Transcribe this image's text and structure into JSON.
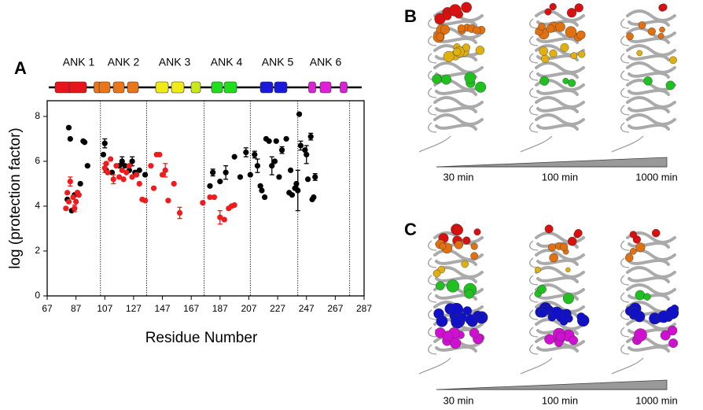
{
  "chart_data": {
    "type": "scatter",
    "panel_label": "A",
    "xlabel": "Residue Number",
    "ylabel": "log (protection factor)",
    "xlim": [
      67,
      287
    ],
    "ylim": [
      0,
      8.7
    ],
    "xticks": [
      67,
      87,
      107,
      127,
      147,
      167,
      187,
      207,
      227,
      247,
      267,
      287
    ],
    "yticks": [
      0,
      2,
      4,
      6,
      8
    ],
    "boundaries": [
      104,
      136,
      176,
      208,
      241,
      277
    ],
    "domains": [
      "ANK 1",
      "ANK 2",
      "ANK 3",
      "ANK 4",
      "ANK 5",
      "ANK 6"
    ],
    "series": [
      {
        "color": "#000000",
        "x": [
          81,
          82,
          83,
          84,
          86,
          88,
          90,
          92,
          93,
          95,
          106,
          107,
          108,
          112,
          117,
          119,
          121,
          124,
          126,
          128,
          131,
          135,
          180,
          182,
          187,
          191,
          197,
          201,
          205,
          208,
          211,
          213,
          215,
          216,
          218,
          219,
          221,
          223,
          225,
          226,
          228,
          230,
          233,
          235,
          236,
          237,
          239,
          240,
          241,
          242,
          243,
          246,
          247,
          248,
          250,
          251,
          252,
          253
        ],
        "y": [
          4.3,
          7.5,
          7.0,
          3.8,
          4.5,
          4.6,
          5.0,
          6.9,
          6.85,
          5.8,
          6.3,
          6.8,
          5.6,
          5.5,
          5.8,
          6.0,
          5.8,
          5.6,
          6.0,
          5.5,
          5.6,
          5.4,
          4.9,
          5.5,
          5.1,
          5.5,
          6.2,
          5.3,
          6.4,
          5.4,
          6.3,
          5.8,
          4.9,
          4.7,
          4.4,
          7.0,
          6.9,
          5.8,
          6.0,
          6.9,
          5.3,
          6.5,
          7.0,
          4.6,
          5.6,
          4.5,
          4.8,
          5.0,
          4.7,
          8.1,
          6.7,
          6.5,
          6.3,
          5.2,
          7.1,
          4.3,
          4.4,
          5.3
        ],
        "errors": [
          null,
          null,
          null,
          null,
          null,
          null,
          null,
          null,
          null,
          null,
          null,
          0.2,
          null,
          null,
          null,
          0.2,
          null,
          null,
          0.2,
          null,
          null,
          null,
          null,
          0.15,
          null,
          0.3,
          null,
          null,
          0.2,
          null,
          0.15,
          0.3,
          null,
          null,
          null,
          null,
          null,
          0.4,
          null,
          null,
          null,
          0.15,
          null,
          null,
          null,
          null,
          null,
          null,
          0.9,
          null,
          0.2,
          null,
          0.4,
          null,
          0.15,
          null,
          null,
          0.15
        ]
      },
      {
        "color": "#ee1c1c",
        "x": [
          80,
          81,
          82,
          83,
          85,
          86,
          87,
          88,
          89,
          107,
          108,
          109,
          111,
          113,
          115,
          117,
          119,
          120,
          122,
          124,
          126,
          129,
          131,
          133,
          135,
          139,
          141,
          143,
          145,
          147,
          149,
          151,
          155,
          159,
          175,
          180,
          183,
          187,
          190,
          193,
          195,
          197
        ],
        "y": [
          3.9,
          4.6,
          4.2,
          5.1,
          4.4,
          3.9,
          4.2,
          4.6,
          4.5,
          5.7,
          5.9,
          5.5,
          6.1,
          5.2,
          5.8,
          5.3,
          5.6,
          5.2,
          5.5,
          5.8,
          5.3,
          5.4,
          5.0,
          4.3,
          4.25,
          5.8,
          4.8,
          6.3,
          6.3,
          5.4,
          5.6,
          4.25,
          5.0,
          3.7,
          4.15,
          4.4,
          4.4,
          3.5,
          3.4,
          3.9,
          4.0,
          4.05
        ],
        "errors": [
          null,
          null,
          null,
          0.2,
          null,
          0.15,
          null,
          null,
          null,
          0.2,
          null,
          null,
          null,
          0.2,
          null,
          null,
          null,
          null,
          null,
          null,
          null,
          null,
          null,
          null,
          null,
          null,
          null,
          null,
          null,
          null,
          0.3,
          null,
          null,
          0.25,
          null,
          null,
          null,
          0.3,
          null,
          null,
          null,
          null
        ]
      }
    ]
  },
  "panels": [
    {
      "label": "B",
      "times": [
        "30 min",
        "100 min",
        "1000 min"
      ]
    },
    {
      "label": "C",
      "times": [
        "30 min",
        "100 min",
        "1000 min"
      ]
    }
  ]
}
